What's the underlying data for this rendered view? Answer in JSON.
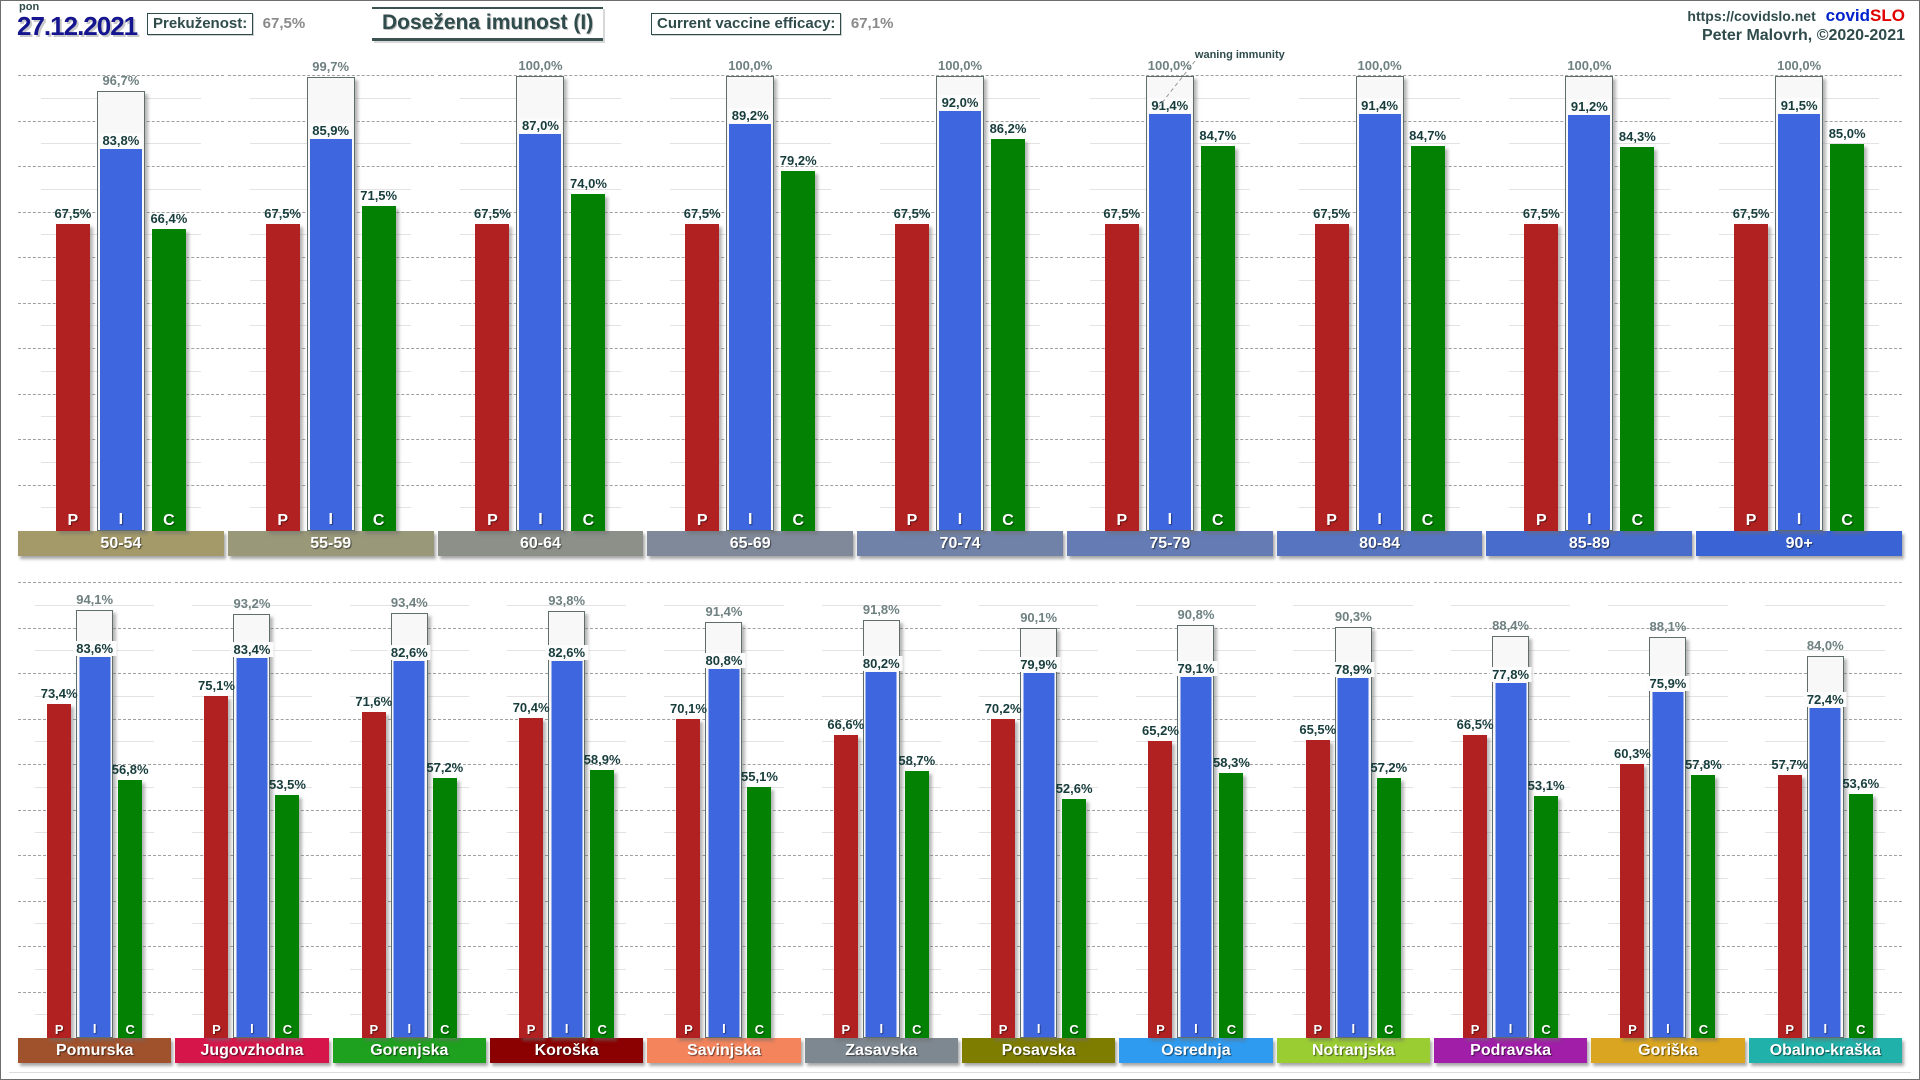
{
  "header": {
    "weekday": "pon",
    "date": "27.12.2021",
    "prevalence_label": "Prekuženost:",
    "prevalence_value": "67,5%",
    "title": "Dosežena imunost (I)",
    "efficacy_label": "Current vaccine efficacy:",
    "efficacy_value": "67,1%",
    "url": "https://covidslo.net",
    "brand_covid": "covid",
    "brand_slo": "SLO",
    "credit": "Peter Malovrh, ©2020-2021"
  },
  "bar_letters": [
    "P",
    "I",
    "C"
  ],
  "colors": {
    "p_bar": "#B12121",
    "i_bar": "#3E66DE",
    "c_bar": "#028102",
    "max_bar_fill": "#F8F8F8",
    "label_dark": "#173C3C",
    "label_gray": "#6F8080",
    "date_blue": "#15158F",
    "brand_blue": "#0022CC",
    "brand_red": "#E00000",
    "slate": "#2F4B4B"
  },
  "chart_data": [
    {
      "type": "bar",
      "row": "age_groups",
      "ylim": [
        0,
        100
      ],
      "unit": "%",
      "gridlines": "dashed every 10%, light every 5%",
      "bar_series": [
        "P",
        "I",
        "C"
      ],
      "outline_series": "max",
      "annotation": {
        "text": "waning immunity",
        "target_group": "75-79"
      },
      "groups": [
        {
          "label": "50-54",
          "band_color": "#A49A69",
          "P": 67.5,
          "max": 96.7,
          "I": 83.8,
          "C": 66.4
        },
        {
          "label": "55-59",
          "band_color": "#999879",
          "P": 67.5,
          "max": 99.7,
          "I": 85.9,
          "C": 71.5
        },
        {
          "label": "60-64",
          "band_color": "#8C9089",
          "P": 67.5,
          "max": 100.0,
          "I": 87.0,
          "C": 74.0
        },
        {
          "label": "65-69",
          "band_color": "#7F8999",
          "P": 67.5,
          "max": 100.0,
          "I": 89.2,
          "C": 79.2
        },
        {
          "label": "70-74",
          "band_color": "#7182A9",
          "P": 67.5,
          "max": 100.0,
          "I": 92.0,
          "C": 86.2
        },
        {
          "label": "75-79",
          "band_color": "#647BB4",
          "P": 67.5,
          "max": 100.0,
          "I": 91.4,
          "C": 84.7
        },
        {
          "label": "80-84",
          "band_color": "#5674C0",
          "P": 67.5,
          "max": 100.0,
          "I": 91.4,
          "C": 84.7
        },
        {
          "label": "85-89",
          "band_color": "#486CCB",
          "P": 67.5,
          "max": 100.0,
          "I": 91.2,
          "C": 84.3
        },
        {
          "label": "90+",
          "band_color": "#3A64D6",
          "P": 67.5,
          "max": 100.0,
          "I": 91.5,
          "C": 85.0
        }
      ]
    },
    {
      "type": "bar",
      "row": "regions",
      "ylim": [
        0,
        100
      ],
      "unit": "%",
      "gridlines": "dashed every 10%, light every 5%",
      "bar_series": [
        "P",
        "I",
        "C"
      ],
      "outline_series": "max",
      "groups": [
        {
          "label": "Pomurska",
          "band_color": "#A0522D",
          "P": 73.4,
          "max": 94.1,
          "I": 83.6,
          "C": 56.8
        },
        {
          "label": "Jugovzhodna",
          "band_color": "#D6164B",
          "P": 75.1,
          "max": 93.2,
          "I": 83.4,
          "C": 53.5
        },
        {
          "label": "Gorenjska",
          "band_color": "#1EA11E",
          "P": 71.6,
          "max": 93.4,
          "I": 82.6,
          "C": 57.2
        },
        {
          "label": "Koroška",
          "band_color": "#8B0000",
          "P": 70.4,
          "max": 93.8,
          "I": 82.6,
          "C": 58.9
        },
        {
          "label": "Savinjska",
          "band_color": "#F4845C",
          "P": 70.1,
          "max": 91.4,
          "I": 80.8,
          "C": 55.1
        },
        {
          "label": "Zasavska",
          "band_color": "#7E8890",
          "P": 66.6,
          "max": 91.8,
          "I": 80.2,
          "C": 58.7
        },
        {
          "label": "Posavska",
          "band_color": "#7E7D00",
          "P": 70.2,
          "max": 90.1,
          "I": 79.9,
          "C": 52.6
        },
        {
          "label": "Osrednja",
          "band_color": "#2E9BF0",
          "P": 65.2,
          "max": 90.8,
          "I": 79.1,
          "C": 58.3
        },
        {
          "label": "Notranjska",
          "band_color": "#9ACD32",
          "P": 65.5,
          "max": 90.3,
          "I": 78.9,
          "C": 57.2
        },
        {
          "label": "Podravska",
          "band_color": "#A01EA8",
          "P": 66.5,
          "max": 88.4,
          "I": 77.8,
          "C": 53.1
        },
        {
          "label": "Goriška",
          "band_color": "#DAA520",
          "P": 60.3,
          "max": 88.1,
          "I": 75.9,
          "C": 57.8
        },
        {
          "label": "Obalno-kraška",
          "band_color": "#20B2AA",
          "P": 57.7,
          "max": 84.0,
          "I": 72.4,
          "C": 53.6
        }
      ]
    }
  ]
}
